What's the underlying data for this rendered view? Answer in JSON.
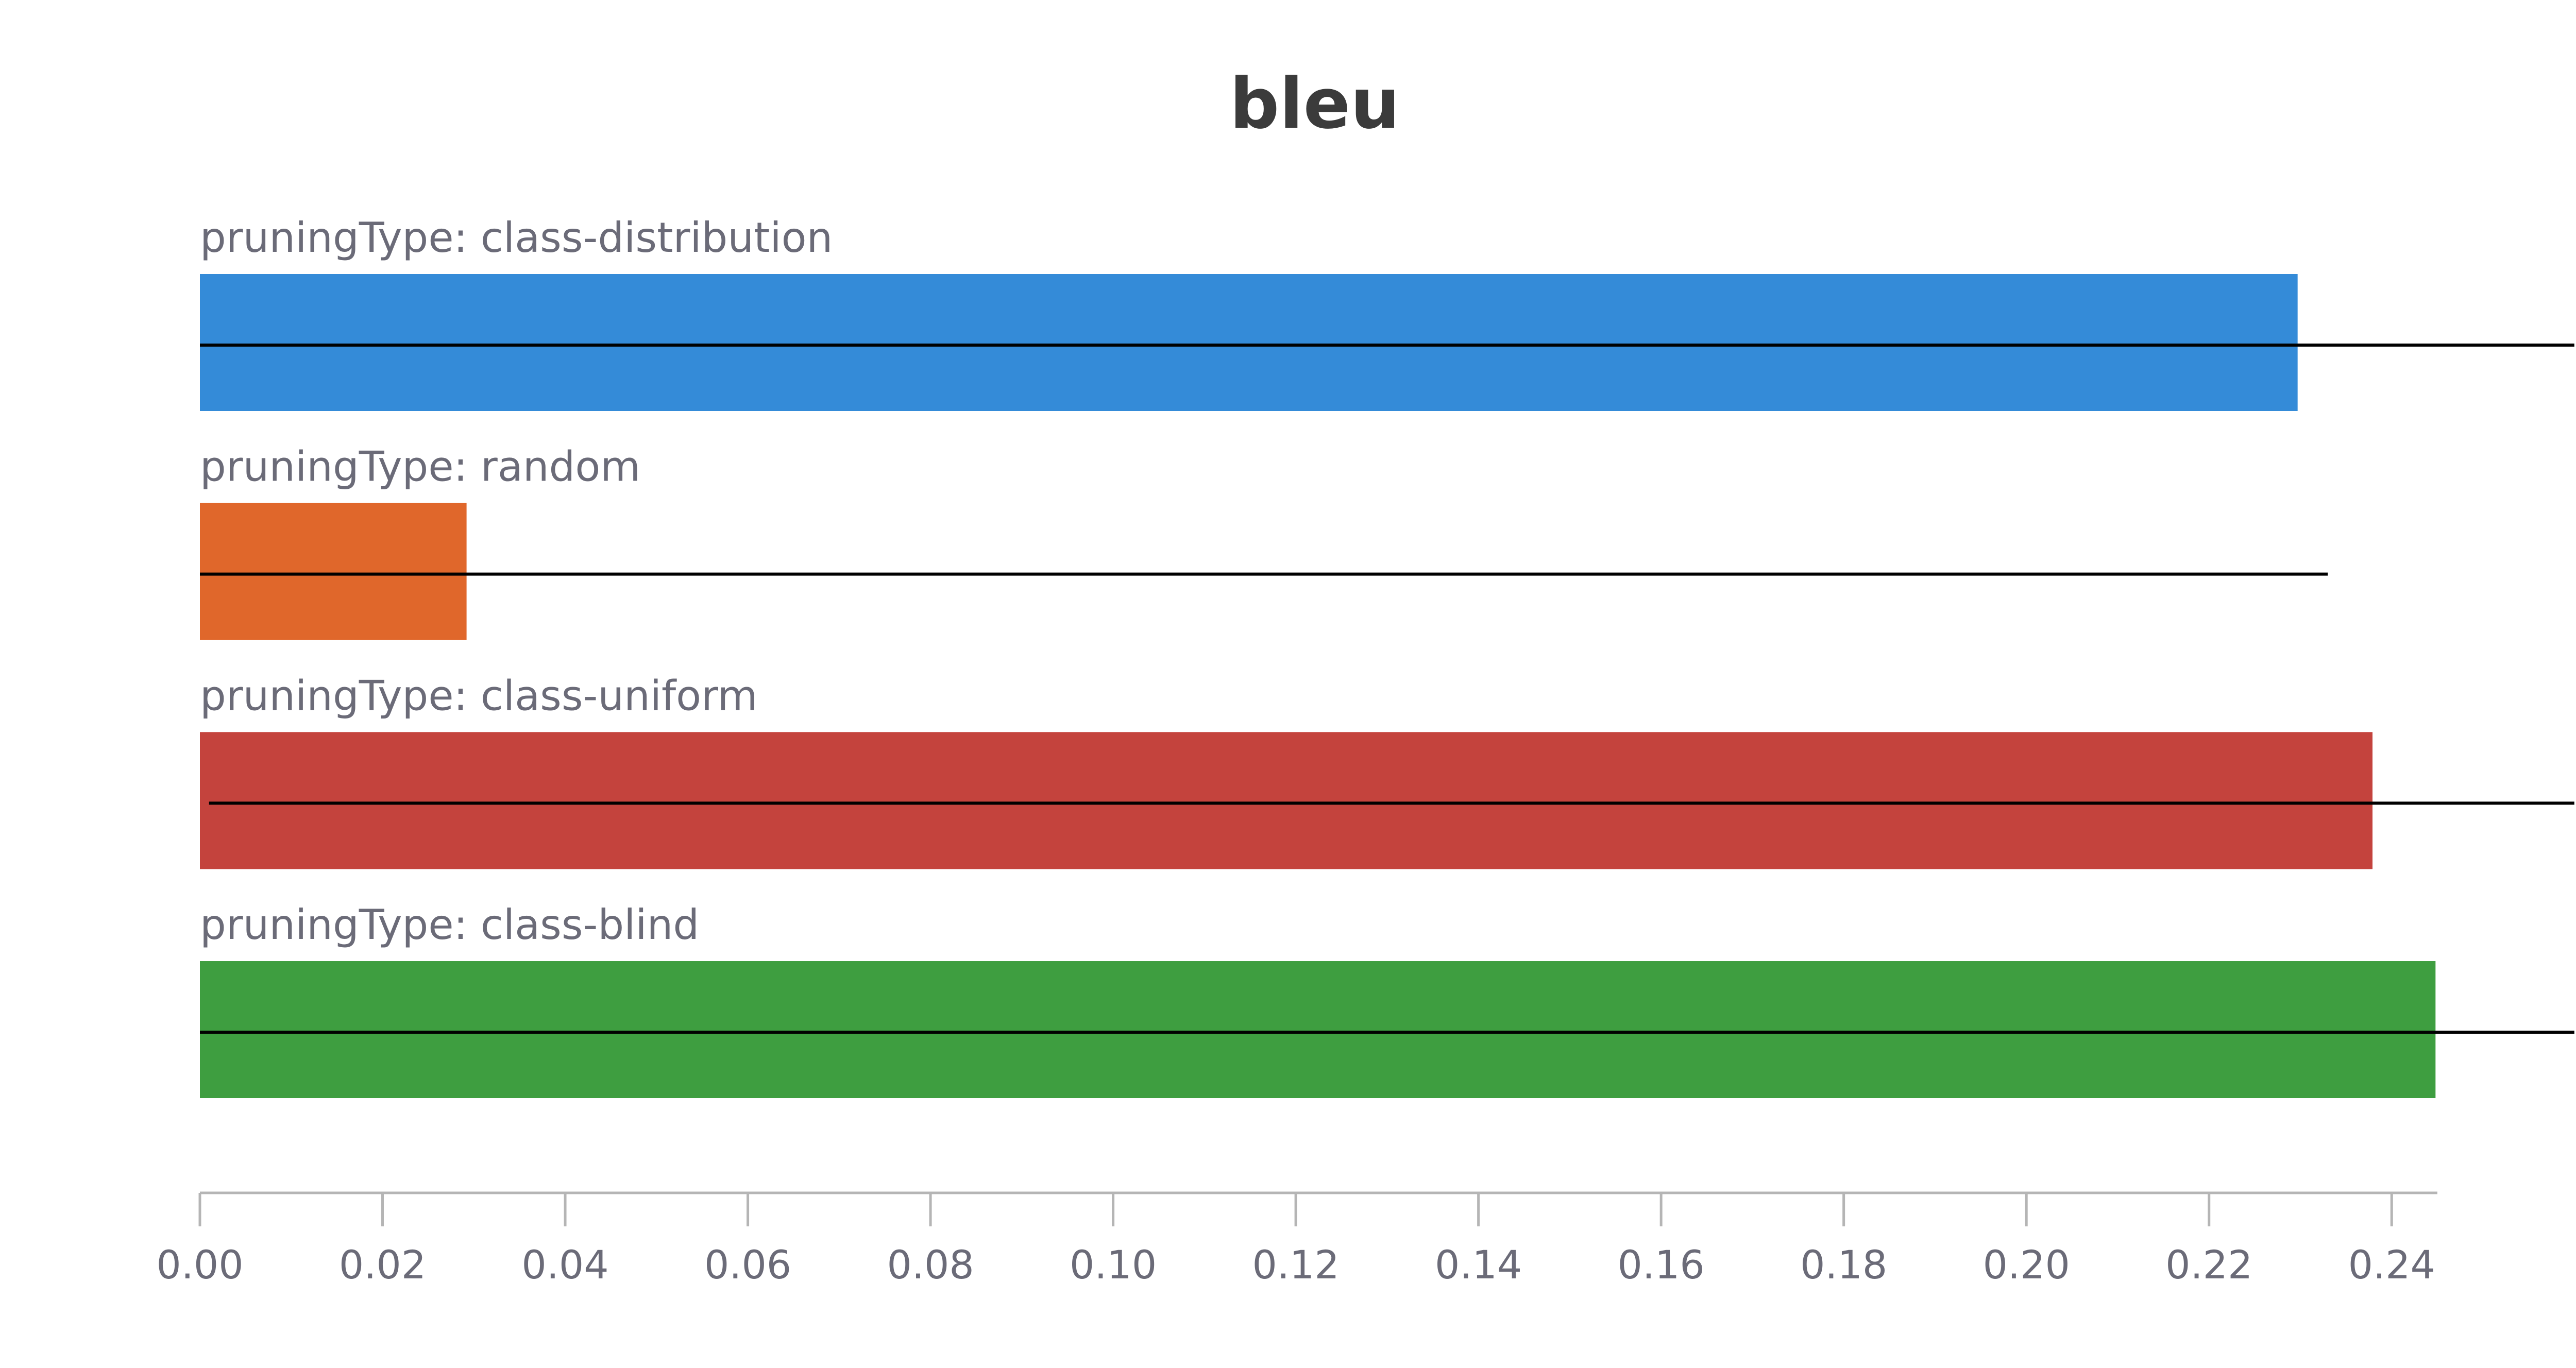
{
  "chart_data": {
    "type": "bar",
    "orientation": "horizontal",
    "title": "bleu",
    "xlabel": "",
    "ylabel": "",
    "xlim": [
      0,
      0.245
    ],
    "grid": false,
    "legend": "none",
    "x_ticks": [
      "0.00",
      "0.02",
      "0.04",
      "0.06",
      "0.08",
      "0.10",
      "0.12",
      "0.14",
      "0.16",
      "0.18",
      "0.20",
      "0.22",
      "0.24"
    ],
    "bars": [
      {
        "label": "pruningType: class-distribution",
        "value": 0.2297,
        "color": "#348bd8",
        "range": [
          0.0,
          0.26
        ]
      },
      {
        "label": "pruningType: random",
        "value": 0.0292,
        "color": "#e0672b",
        "range": [
          0.0,
          0.233
        ]
      },
      {
        "label": "pruningType: class-uniform",
        "value": 0.2379,
        "color": "#c4433d",
        "range": [
          0.001,
          0.26
        ]
      },
      {
        "label": "pruningType: class-blind",
        "value": 0.2448,
        "color": "#3e9e40",
        "range": [
          0.0,
          0.26
        ]
      }
    ]
  }
}
